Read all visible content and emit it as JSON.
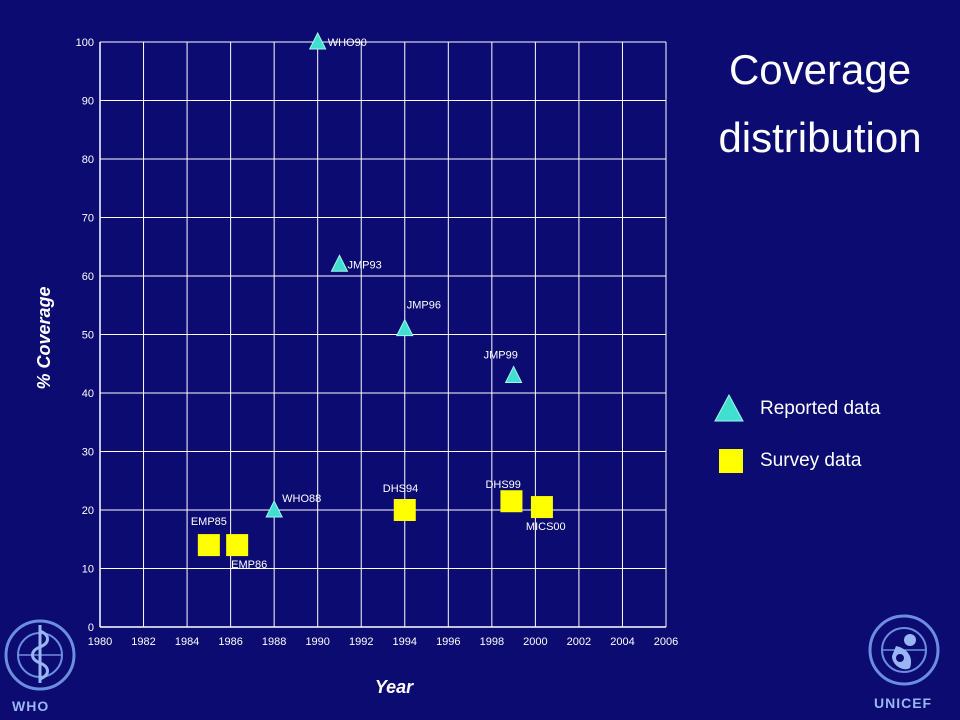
{
  "title": {
    "line1": "Coverage",
    "line2": "distribution"
  },
  "legend": {
    "reported": "Reported data",
    "survey": "Survey data"
  },
  "logos": {
    "left": "WHO",
    "right": "UNICEF"
  },
  "colors": {
    "background": "#0b0b72",
    "reported": "#40e0d0",
    "survey": "#ffff00",
    "logo": "#9ab6f2"
  },
  "chart_data": {
    "type": "scatter",
    "xlabel": "Year",
    "ylabel": "% Coverage",
    "xlim": [
      1980,
      2006
    ],
    "ylim": [
      0,
      100
    ],
    "xticks": [
      1980,
      1982,
      1984,
      1986,
      1988,
      1990,
      1992,
      1994,
      1996,
      1998,
      2000,
      2002,
      2004,
      2006
    ],
    "yticks": [
      0,
      10,
      20,
      30,
      40,
      50,
      60,
      70,
      80,
      90,
      100
    ],
    "grid": true,
    "series": [
      {
        "name": "Reported data",
        "marker": "triangle",
        "points": [
          {
            "label": "WHO88",
            "x": 1988,
            "y": 20
          },
          {
            "label": "WHO90",
            "x": 1990,
            "y": 100
          },
          {
            "label": "JMP93",
            "x": 1991,
            "y": 62
          },
          {
            "label": "JMP96",
            "x": 1994,
            "y": 51
          },
          {
            "label": "JMP99",
            "x": 1999,
            "y": 43
          }
        ]
      },
      {
        "name": "Survey data",
        "marker": "square",
        "points": [
          {
            "label": "EMP85",
            "x": 1985,
            "y": 14
          },
          {
            "label": "EMP86",
            "x": 1986.3,
            "y": 14
          },
          {
            "label": "DHS94",
            "x": 1994,
            "y": 20
          },
          {
            "label": "DHS99",
            "x": 1998.9,
            "y": 21.5
          },
          {
            "label": "MICS00",
            "x": 2000.3,
            "y": 20.5
          }
        ]
      }
    ]
  }
}
